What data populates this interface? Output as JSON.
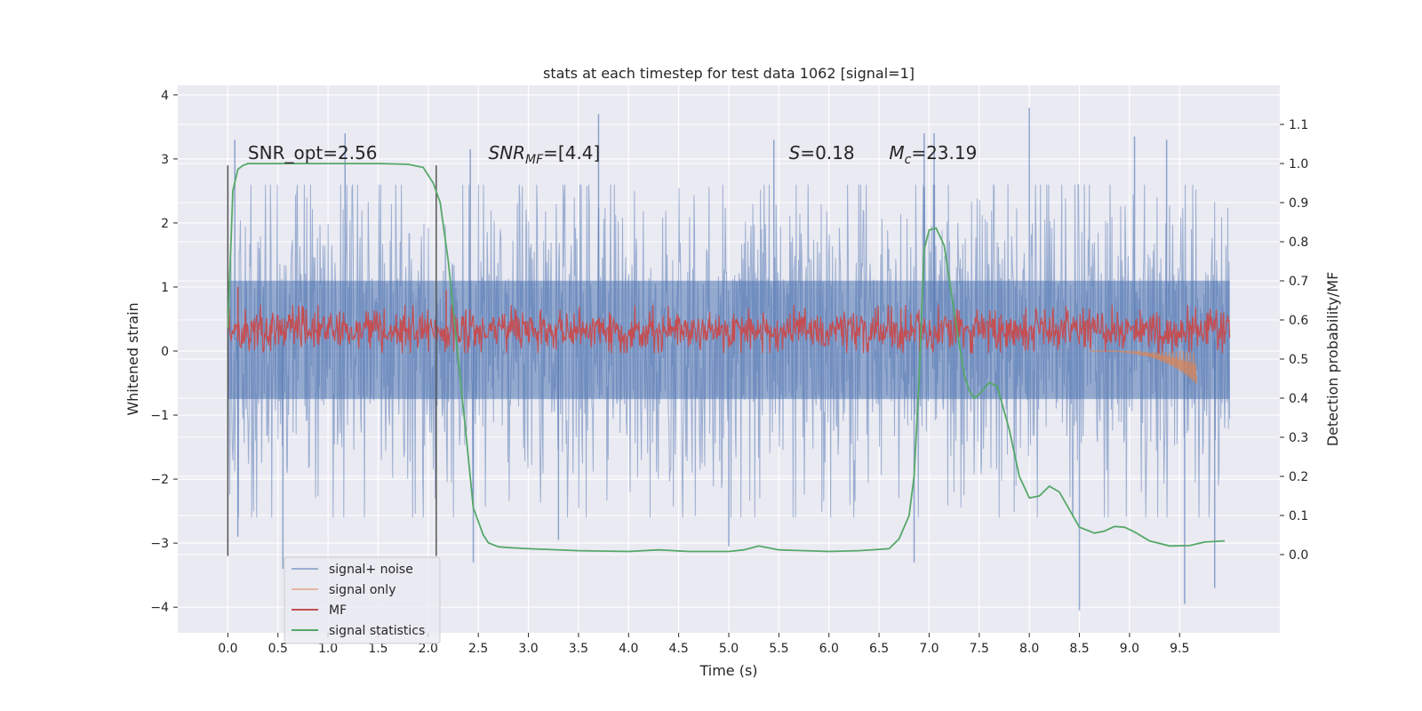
{
  "chart_data": {
    "type": "line",
    "title": "stats at each timestep for test data 1062 [signal=1]",
    "xlabel": "Time (s)",
    "ylabel": "Whitened strain",
    "ylabel_right": "Detection probability/MF",
    "xlim": [
      -0.5,
      10.5
    ],
    "ylim": [
      -4.4,
      4.15
    ],
    "ylim_right": [
      -0.2,
      1.2
    ],
    "x_ticks": [
      0.0,
      0.5,
      1.0,
      1.5,
      2.0,
      2.5,
      3.0,
      3.5,
      4.0,
      4.5,
      5.0,
      5.5,
      6.0,
      6.5,
      7.0,
      7.5,
      8.0,
      8.5,
      9.0,
      9.5
    ],
    "x_tick_labels": [
      "0.0",
      "0.5",
      "1.0",
      "1.5",
      "2.0",
      "2.5",
      "3.0",
      "3.5",
      "4.0",
      "4.5",
      "5.0",
      "5.5",
      "6.0",
      "6.5",
      "7.0",
      "7.5",
      "8.0",
      "8.5",
      "9.0",
      "9.5"
    ],
    "y_ticks": [
      4,
      3,
      2,
      1,
      0,
      -1,
      -2,
      -3,
      -4
    ],
    "y_tick_labels": [
      "4",
      "3",
      "2",
      "1",
      "0",
      "−1",
      "−2",
      "−3",
      "−4"
    ],
    "y_right_ticks": [
      1.1,
      1.0,
      0.9,
      0.8,
      0.7,
      0.6,
      0.5,
      0.4,
      0.3,
      0.2,
      0.1,
      0.0
    ],
    "y_right_tick_labels": [
      "1.1",
      "1.0",
      "0.9",
      "0.8",
      "0.7",
      "0.6",
      "0.5",
      "0.4",
      "0.3",
      "0.2",
      "0.1",
      "0.0"
    ],
    "grid": true,
    "vlines": [
      {
        "x": 0.0,
        "y_range": [
          -3.2,
          2.9
        ]
      },
      {
        "x": 2.08,
        "y_range": [
          -3.2,
          2.9
        ]
      }
    ],
    "annotations": [
      {
        "x": 0.2,
        "y": 3.0,
        "text": "SNR_opt=2.56",
        "math": false
      },
      {
        "x": 2.6,
        "y": 3.0,
        "main": "SNR",
        "sub": "MF",
        "rest": "=[4.4]",
        "math": true
      },
      {
        "x": 5.6,
        "y": 3.0,
        "main": "S",
        "sub": "",
        "rest": "=0.18",
        "math": true
      },
      {
        "x": 6.6,
        "y": 3.0,
        "main": "M",
        "sub": "c",
        "rest": "=23.19",
        "math": true
      }
    ],
    "legend_position": "lower-left",
    "series": [
      {
        "name": "signal+ noise",
        "color": "#4c72b0",
        "opacity": 0.5,
        "axis": "left",
        "kind": "noise",
        "x_range": [
          0.0,
          10.0
        ],
        "envelope": {
          "p05": -1.45,
          "p25": -0.75,
          "p75": 1.1,
          "p95": 1.75
        },
        "peaks_high": [
          {
            "x": 0.07,
            "y": 3.3
          },
          {
            "x": 1.17,
            "y": 3.4
          },
          {
            "x": 2.42,
            "y": 3.15
          },
          {
            "x": 3.7,
            "y": 3.7
          },
          {
            "x": 5.45,
            "y": 3.3
          },
          {
            "x": 6.95,
            "y": 3.4
          },
          {
            "x": 7.05,
            "y": 3.4
          },
          {
            "x": 8.0,
            "y": 3.8
          },
          {
            "x": 9.05,
            "y": 3.35
          },
          {
            "x": 9.37,
            "y": 3.3
          }
        ],
        "peaks_low": [
          {
            "x": 0.1,
            "y": -2.9
          },
          {
            "x": 0.55,
            "y": -3.4
          },
          {
            "x": 2.45,
            "y": -3.3
          },
          {
            "x": 3.3,
            "y": -2.95
          },
          {
            "x": 5.0,
            "y": -3.05
          },
          {
            "x": 6.85,
            "y": -3.3
          },
          {
            "x": 8.5,
            "y": -4.05
          },
          {
            "x": 9.55,
            "y": -3.95
          },
          {
            "x": 9.85,
            "y": -3.7
          }
        ]
      },
      {
        "name": "signal only",
        "color": "#dd8452",
        "opacity": 0.5,
        "axis": "left",
        "kind": "chirp",
        "x_range": [
          8.6,
          9.67
        ],
        "y_min": -0.53
      },
      {
        "name": "MF",
        "color": "#c44e52",
        "opacity": 1.0,
        "axis": "left",
        "kind": "band",
        "x_range": [
          0.0,
          10.0
        ],
        "band": [
          0.05,
          0.6
        ],
        "peaks_high": [
          {
            "x": 0.1,
            "y": 1.0
          },
          {
            "x": 2.18,
            "y": 0.95
          }
        ]
      },
      {
        "name": "signal statistics",
        "color": "#55a868",
        "opacity": 1.0,
        "axis": "right",
        "kind": "line",
        "x": [
          0.0,
          0.05,
          0.1,
          0.15,
          0.2,
          0.3,
          0.5,
          1.0,
          1.5,
          1.8,
          1.95,
          2.05,
          2.12,
          2.2,
          2.3,
          2.38,
          2.45,
          2.55,
          2.6,
          2.7,
          2.8,
          3.0,
          3.5,
          4.0,
          4.3,
          4.6,
          5.0,
          5.15,
          5.3,
          5.5,
          6.0,
          6.3,
          6.6,
          6.7,
          6.8,
          6.85,
          6.9,
          6.95,
          7.0,
          7.07,
          7.15,
          7.25,
          7.35,
          7.4,
          7.45,
          7.5,
          7.6,
          7.68,
          7.8,
          7.9,
          8.0,
          8.1,
          8.2,
          8.3,
          8.5,
          8.65,
          8.75,
          8.85,
          8.95,
          9.05,
          9.2,
          9.4,
          9.6,
          9.75,
          9.95
        ],
        "y": [
          0.58,
          0.93,
          0.985,
          0.995,
          1.0,
          1.0,
          1.0,
          1.0,
          1.0,
          0.998,
          0.99,
          0.95,
          0.9,
          0.75,
          0.5,
          0.3,
          0.12,
          0.05,
          0.03,
          0.02,
          0.018,
          0.015,
          0.01,
          0.008,
          0.012,
          0.008,
          0.008,
          0.012,
          0.022,
          0.012,
          0.008,
          0.01,
          0.015,
          0.04,
          0.1,
          0.2,
          0.45,
          0.78,
          0.83,
          0.835,
          0.79,
          0.62,
          0.46,
          0.42,
          0.4,
          0.41,
          0.44,
          0.43,
          0.32,
          0.2,
          0.145,
          0.15,
          0.175,
          0.16,
          0.07,
          0.055,
          0.06,
          0.072,
          0.07,
          0.058,
          0.035,
          0.022,
          0.023,
          0.032,
          0.035
        ]
      }
    ]
  }
}
